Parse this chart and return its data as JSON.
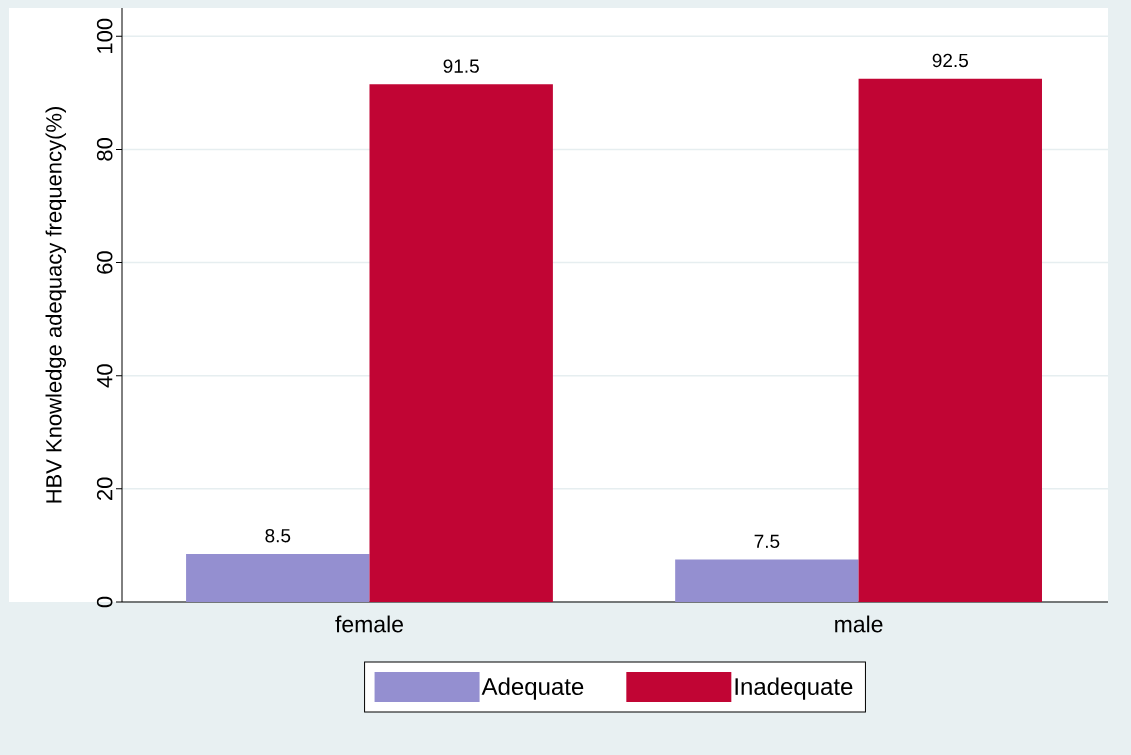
{
  "chart_data": {
    "type": "bar",
    "ylabel": "HBV Knowledge adequacy frequency(%)",
    "categories": [
      "female",
      "male"
    ],
    "series": [
      {
        "name": "Adequate",
        "color": "#948fd0",
        "values": [
          8.5,
          7.5
        ]
      },
      {
        "name": "Inadequate",
        "color": "#c10534",
        "values": [
          91.5,
          92.5
        ]
      }
    ],
    "ylim": [
      0,
      105
    ],
    "yticks": [
      0,
      20,
      40,
      60,
      80,
      100
    ],
    "grid": "y",
    "legend": "bottom",
    "data_labels": true
  }
}
